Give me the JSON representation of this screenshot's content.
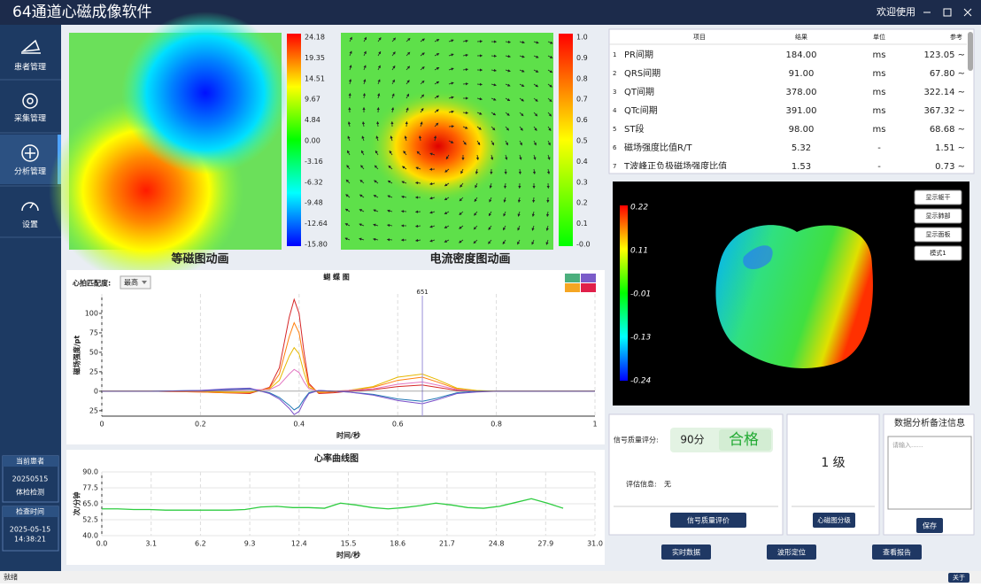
{
  "window": {
    "title": "64通道心磁成像软件",
    "welcome": "欢迎使用"
  },
  "sidebar": {
    "items": [
      "患者管理",
      "采集管理",
      "分析管理",
      "设置"
    ],
    "patient_label": "当前患者",
    "patient_id": "20250515",
    "patient_type": "体检检测",
    "time_label": "检查时间",
    "date": "2025-05-15",
    "time": "14:38:21"
  },
  "maps": [
    {
      "caption": "等磁图动画",
      "scale": [
        "24.18",
        "19.35",
        "14.51",
        "9.67",
        "4.84",
        "0.00",
        "-3.16",
        "-6.32",
        "-9.48",
        "-12.64",
        "-15.80"
      ]
    },
    {
      "caption": "电流密度图动画",
      "scale": [
        "1.0",
        "0.9",
        "0.8",
        "0.7",
        "0.6",
        "0.5",
        "0.4",
        "0.3",
        "0.2",
        "0.1",
        "-0.0"
      ]
    }
  ],
  "butterfly": {
    "title": "蝴 蝶 图",
    "match_label": "心拍匹配度:",
    "match_value": "最高",
    "ylabel": "磁场强度/pt",
    "xlabel": "时间/秒",
    "marker": {
      "x": 0.65,
      "label": "651"
    },
    "xlim": [
      0,
      1
    ],
    "ylim": [
      -32,
      125
    ],
    "xticks": [
      0,
      0.2,
      0.4,
      0.6,
      0.8,
      1
    ],
    "yticks": [
      100,
      75,
      50,
      25,
      0,
      {
        "value": -25,
        "label": "25"
      }
    ],
    "x": [
      0,
      0.1,
      0.2,
      0.25,
      0.3,
      0.34,
      0.36,
      0.38,
      0.39,
      0.4,
      0.41,
      0.42,
      0.44,
      0.47,
      0.5,
      0.55,
      0.6,
      0.65,
      0.68,
      0.72,
      0.76,
      0.8,
      0.9,
      1.0
    ],
    "series": [
      {
        "color": "#d62728",
        "values": [
          0,
          0,
          -1,
          -2,
          -3,
          5,
          30,
          95,
          118,
          100,
          50,
          10,
          -3,
          -2,
          0,
          2,
          6,
          8,
          5,
          1,
          0,
          0,
          0,
          0
        ]
      },
      {
        "color": "#ff7f0e",
        "values": [
          0,
          0,
          -1,
          -2,
          -2,
          4,
          22,
          70,
          88,
          75,
          38,
          8,
          -2,
          -1,
          1,
          5,
          14,
          18,
          12,
          3,
          0,
          0,
          0,
          0
        ]
      },
      {
        "color": "#e6b800",
        "values": [
          0,
          0,
          0,
          -1,
          -1,
          3,
          14,
          45,
          56,
          48,
          24,
          5,
          -1,
          0,
          1,
          6,
          18,
          22,
          15,
          4,
          1,
          0,
          0,
          0
        ]
      },
      {
        "color": "#e377c2",
        "values": [
          0,
          0,
          0,
          1,
          2,
          2,
          8,
          22,
          28,
          24,
          12,
          3,
          0,
          0,
          1,
          3,
          9,
          12,
          8,
          2,
          0,
          0,
          0,
          0
        ]
      },
      {
        "color": "#1f77b4",
        "values": [
          0,
          0,
          1,
          2,
          3,
          -2,
          -8,
          -18,
          -24,
          -20,
          -10,
          -2,
          1,
          0,
          -1,
          -4,
          -10,
          -13,
          -9,
          -2,
          0,
          0,
          0,
          0
        ]
      },
      {
        "color": "#7b4fc9",
        "values": [
          0,
          0,
          1,
          3,
          4,
          -3,
          -10,
          -22,
          -30,
          -26,
          -13,
          -3,
          1,
          0,
          -1,
          -5,
          -12,
          -16,
          -11,
          -3,
          -1,
          0,
          0,
          0
        ]
      }
    ]
  },
  "heart_rate": {
    "title": "心率曲线图",
    "ylabel": "次/分钟",
    "xlabel": "时间/秒",
    "color": "#2ecc40",
    "xlim": [
      0,
      31
    ],
    "ylim": [
      40,
      90
    ],
    "xticks": [
      {
        "value": 0,
        "label": "0.0"
      },
      3.1,
      6.2,
      9.3,
      12.4,
      15.5,
      18.6,
      21.7,
      24.8,
      27.9,
      {
        "value": 31,
        "label": "31.0"
      }
    ],
    "yticks": [
      {
        "value": 90,
        "label": "90.0"
      },
      77.5,
      {
        "value": 65,
        "label": "65.0"
      },
      52.5,
      {
        "value": 40,
        "label": "40.0"
      }
    ],
    "x": [
      0,
      1,
      2,
      3,
      4,
      5,
      6,
      7,
      8,
      9,
      10,
      11,
      12,
      13,
      14,
      15,
      16,
      17,
      18,
      19,
      20,
      21,
      22,
      23,
      24,
      25,
      26,
      27,
      28,
      29
    ],
    "values": [
      61,
      61,
      60.5,
      60.5,
      60,
      60,
      60,
      60,
      60,
      60.5,
      62.5,
      63,
      62,
      62,
      61.5,
      65.5,
      64,
      62,
      61,
      62,
      63.5,
      65.5,
      64,
      62,
      61.5,
      63,
      66,
      69,
      65.5,
      61.5
    ]
  },
  "table": {
    "header": [
      "项目",
      "结果",
      "单位",
      "参考"
    ],
    "rows": [
      [
        "1",
        "PR间期",
        "184.00",
        "ms",
        "123.05 ~"
      ],
      [
        "2",
        "QRS间期",
        "91.00",
        "ms",
        "67.80 ~"
      ],
      [
        "3",
        "QT间期",
        "378.00",
        "ms",
        "322.14 ~"
      ],
      [
        "4",
        "QTc间期",
        "391.00",
        "ms",
        "367.32 ~"
      ],
      [
        "5",
        "ST段",
        "98.00",
        "ms",
        "68.68 ~"
      ],
      [
        "6",
        "磁场强度比值R/T",
        "5.32",
        "-",
        "1.51 ~"
      ],
      [
        "7",
        "T波峰正负极磁场强度比值",
        "1.53",
        "-",
        "0.73 ~"
      ]
    ]
  },
  "view3d": {
    "scale": [
      "0.22",
      "0.11",
      "-0.01",
      "-0.13",
      "-0.24"
    ],
    "buttons": [
      "显示躯干",
      "显示肺部",
      "显示面板",
      "模式1"
    ]
  },
  "quality": {
    "label": "信号质量评分:",
    "score": "90分",
    "verdict": "合格",
    "info_label": "评估信息:",
    "info": "无",
    "button": "信号质量评价"
  },
  "grade": {
    "value": "1 级",
    "button": "心磁图分级"
  },
  "notes": {
    "title": "数据分析备注信息",
    "placeholder": "请输入......",
    "button": "保存"
  },
  "actions": [
    "实时数据",
    "波形定位",
    "查看报告"
  ],
  "status": {
    "text": "就绪",
    "about": "关于"
  }
}
